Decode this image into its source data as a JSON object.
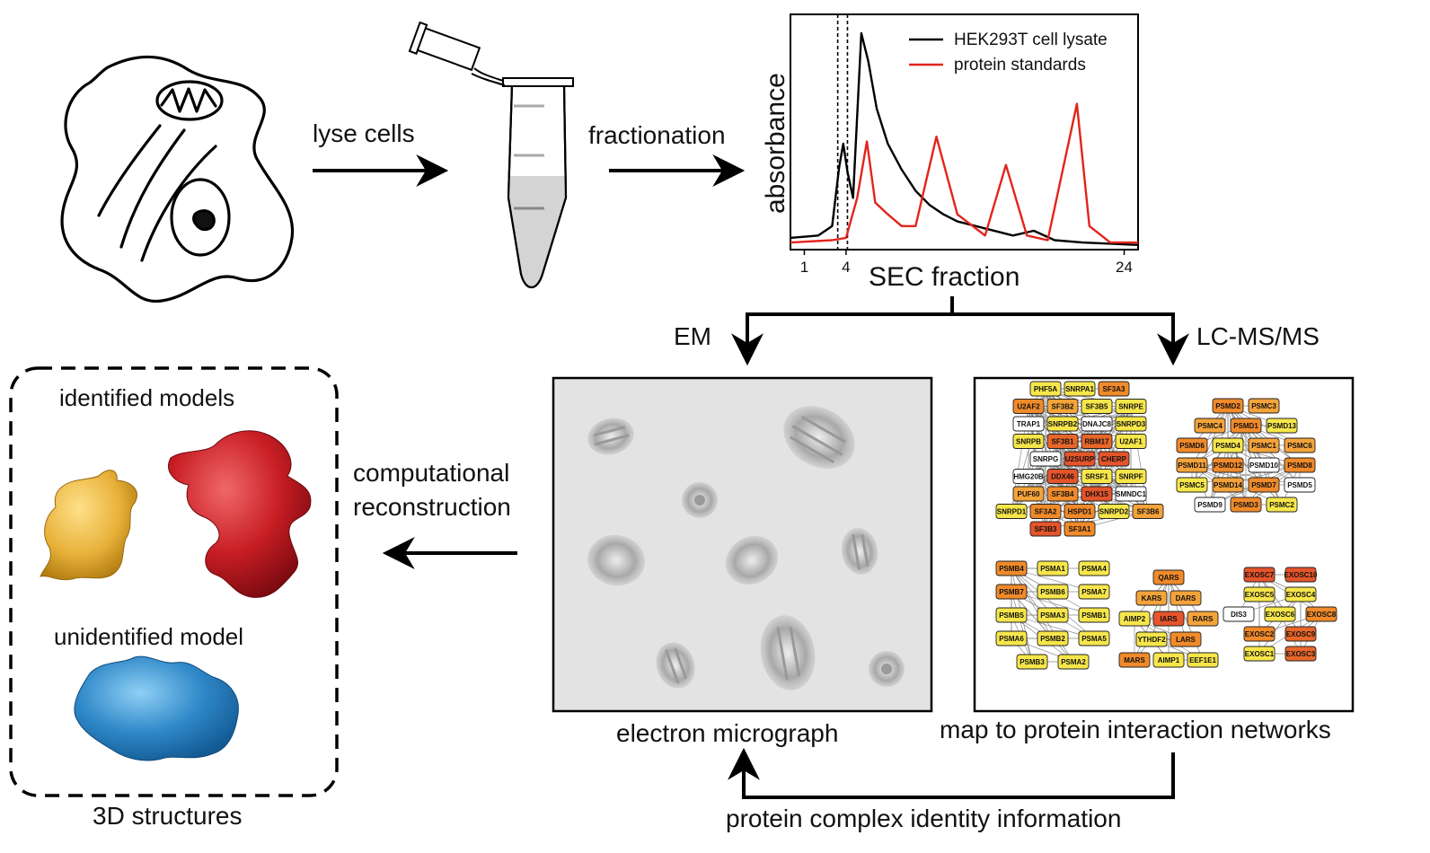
{
  "steps": {
    "lyse": "lyse cells",
    "fractionation": "fractionation",
    "em": "EM",
    "lcms": "LC-MS/MS",
    "reconstruction_line1": "computational",
    "reconstruction_line2": "reconstruction",
    "micrograph": "electron micrograph",
    "networks": "map to protein interaction networks",
    "identity": "protein complex identity information"
  },
  "structures": {
    "identified": "identified models",
    "unidentified": "unidentified model",
    "title": "3D structures"
  },
  "chart_data": {
    "type": "line",
    "ylabel": "absorbance",
    "xlabel": "SEC fraction",
    "x_ticks": [
      "1",
      "4",
      "24"
    ],
    "xlim": [
      0,
      25
    ],
    "ylim": [
      0,
      1
    ],
    "markers": [
      3.4,
      4.1
    ],
    "series": [
      {
        "name": "HEK293T cell lysate",
        "color": "#000000",
        "points": [
          [
            0,
            0.05
          ],
          [
            2,
            0.06
          ],
          [
            3,
            0.1
          ],
          [
            3.5,
            0.35
          ],
          [
            3.8,
            0.45
          ],
          [
            4.1,
            0.33
          ],
          [
            4.5,
            0.22
          ],
          [
            5.1,
            0.92
          ],
          [
            5.6,
            0.8
          ],
          [
            6.2,
            0.6
          ],
          [
            7,
            0.45
          ],
          [
            8,
            0.34
          ],
          [
            9,
            0.25
          ],
          [
            10,
            0.19
          ],
          [
            11,
            0.15
          ],
          [
            12,
            0.12
          ],
          [
            14,
            0.09
          ],
          [
            16,
            0.06
          ],
          [
            17.5,
            0.08
          ],
          [
            19,
            0.04
          ],
          [
            21,
            0.03
          ],
          [
            25,
            0.02
          ]
        ]
      },
      {
        "name": "protein standards",
        "color": "#e3241b",
        "points": [
          [
            0,
            0.03
          ],
          [
            3,
            0.04
          ],
          [
            4,
            0.05
          ],
          [
            4.8,
            0.22
          ],
          [
            5.5,
            0.46
          ],
          [
            6.1,
            0.2
          ],
          [
            7,
            0.15
          ],
          [
            8,
            0.1
          ],
          [
            9,
            0.1
          ],
          [
            10.5,
            0.48
          ],
          [
            12,
            0.15
          ],
          [
            14,
            0.06
          ],
          [
            15.5,
            0.36
          ],
          [
            17,
            0.06
          ],
          [
            18.5,
            0.04
          ],
          [
            20.6,
            0.62
          ],
          [
            21.5,
            0.1
          ],
          [
            23,
            0.03
          ],
          [
            25,
            0.03
          ]
        ]
      }
    ]
  },
  "networks": [
    {
      "id": "spliceosome",
      "nodes": [
        {
          "label": "PHF5A",
          "color": "#f6e64a"
        },
        {
          "label": "SNRPA1",
          "color": "#f6e64a"
        },
        {
          "label": "SF3A3",
          "color": "#f08a2a"
        },
        {
          "label": "U2AF2",
          "color": "#f08a2a"
        },
        {
          "label": "SF3B2",
          "color": "#f4a33a"
        },
        {
          "label": "SF3B5",
          "color": "#f6e64a"
        },
        {
          "label": "SNRPE",
          "color": "#f6e64a"
        },
        {
          "label": "TRAP1",
          "color": "#ffffff"
        },
        {
          "label": "SNRPB2",
          "color": "#f6e64a"
        },
        {
          "label": "DNAJC8",
          "color": "#ffffff"
        },
        {
          "label": "SNRPD3",
          "color": "#f6e64a"
        },
        {
          "label": "SNRPB",
          "color": "#f6e64a"
        },
        {
          "label": "SF3B1",
          "color": "#e8662a"
        },
        {
          "label": "RBM17",
          "color": "#e8662a"
        },
        {
          "label": "U2AF1",
          "color": "#f6e64a"
        },
        {
          "label": "SNRPG",
          "color": "#ffffff"
        },
        {
          "label": "U2SURP",
          "color": "#e5542a"
        },
        {
          "label": "CHERP",
          "color": "#e5542a"
        },
        {
          "label": "HMG20B",
          "color": "#ffffff"
        },
        {
          "label": "DDX46",
          "color": "#e5542a"
        },
        {
          "label": "SRSF1",
          "color": "#f6e64a"
        },
        {
          "label": "SNRPF",
          "color": "#f6e64a"
        },
        {
          "label": "PUF60",
          "color": "#f4a33a"
        },
        {
          "label": "SF3B4",
          "color": "#f08a2a"
        },
        {
          "label": "DHX15",
          "color": "#e5542a"
        },
        {
          "label": "SMNDC1",
          "color": "#ffffff"
        },
        {
          "label": "SNRPD1",
          "color": "#f6e64a"
        },
        {
          "label": "SF3A2",
          "color": "#f08a2a"
        },
        {
          "label": "HSPD1",
          "color": "#f08a2a"
        },
        {
          "label": "SNRPD2",
          "color": "#f6e64a"
        },
        {
          "label": "SF3B6",
          "color": "#f4a33a"
        },
        {
          "label": "SF3B3",
          "color": "#e5542a"
        },
        {
          "label": "SF3A1",
          "color": "#f08a2a"
        }
      ]
    },
    {
      "id": "proteasome-regulatory",
      "nodes": [
        {
          "label": "PSMD2",
          "color": "#f08a2a"
        },
        {
          "label": "PSMC3",
          "color": "#f4a33a"
        },
        {
          "label": "PSMC4",
          "color": "#f4a33a"
        },
        {
          "label": "PSMD1",
          "color": "#f08a2a"
        },
        {
          "label": "PSMD13",
          "color": "#f6e64a"
        },
        {
          "label": "PSMD6",
          "color": "#f08a2a"
        },
        {
          "label": "PSMD4",
          "color": "#f6e64a"
        },
        {
          "label": "PSMC1",
          "color": "#f4a33a"
        },
        {
          "label": "PSMC6",
          "color": "#f4a33a"
        },
        {
          "label": "PSMD11",
          "color": "#f4a33a"
        },
        {
          "label": "PSMD12",
          "color": "#f08a2a"
        },
        {
          "label": "PSMD10",
          "color": "#ffffff"
        },
        {
          "label": "PSMD8",
          "color": "#f08a2a"
        },
        {
          "label": "PSMC5",
          "color": "#f6e64a"
        },
        {
          "label": "PSMD14",
          "color": "#f4a33a"
        },
        {
          "label": "PSMD7",
          "color": "#f08a2a"
        },
        {
          "label": "PSMD5",
          "color": "#ffffff"
        },
        {
          "label": "PSMD9",
          "color": "#ffffff"
        },
        {
          "label": "PSMD3",
          "color": "#f08a2a"
        },
        {
          "label": "PSMC2",
          "color": "#f6e64a"
        }
      ]
    },
    {
      "id": "proteasome-core",
      "nodes": [
        {
          "label": "PSMB4",
          "color": "#f08a2a"
        },
        {
          "label": "PSMA1",
          "color": "#f6e64a"
        },
        {
          "label": "PSMA4",
          "color": "#f6e64a"
        },
        {
          "label": "PSMB7",
          "color": "#f08a2a"
        },
        {
          "label": "PSMB6",
          "color": "#f6e64a"
        },
        {
          "label": "PSMA7",
          "color": "#f6e64a"
        },
        {
          "label": "PSMB5",
          "color": "#f6e64a"
        },
        {
          "label": "PSMA3",
          "color": "#f6e64a"
        },
        {
          "label": "PSMB1",
          "color": "#f6e64a"
        },
        {
          "label": "PSMA6",
          "color": "#f6e64a"
        },
        {
          "label": "PSMB2",
          "color": "#f6e64a"
        },
        {
          "label": "PSMA5",
          "color": "#f6e64a"
        },
        {
          "label": "PSMB3",
          "color": "#f6e64a"
        },
        {
          "label": "PSMA2",
          "color": "#f6e64a"
        }
      ]
    },
    {
      "id": "tRNA-synthetase",
      "nodes": [
        {
          "label": "QARS",
          "color": "#f08a2a"
        },
        {
          "label": "KARS",
          "color": "#f4a33a"
        },
        {
          "label": "DARS",
          "color": "#f4a33a"
        },
        {
          "label": "AIMP2",
          "color": "#f6e64a"
        },
        {
          "label": "IARS",
          "color": "#e5542a"
        },
        {
          "label": "RARS",
          "color": "#f4a33a"
        },
        {
          "label": "YTHDF2",
          "color": "#f6e64a"
        },
        {
          "label": "LARS",
          "color": "#f08a2a"
        },
        {
          "label": "MARS",
          "color": "#f08a2a"
        },
        {
          "label": "AIMP1",
          "color": "#f6e64a"
        },
        {
          "label": "EEF1E1",
          "color": "#f6e64a"
        }
      ]
    },
    {
      "id": "exosome",
      "nodes": [
        {
          "label": "EXOSC7",
          "color": "#e5542a"
        },
        {
          "label": "EXOSC10",
          "color": "#e5542a"
        },
        {
          "label": "EXOSC5",
          "color": "#f6e64a"
        },
        {
          "label": "EXOSC4",
          "color": "#f6e64a"
        },
        {
          "label": "DIS3",
          "color": "#ffffff"
        },
        {
          "label": "EXOSC6",
          "color": "#f6e64a"
        },
        {
          "label": "EXOSC8",
          "color": "#f08a2a"
        },
        {
          "label": "EXOSC2",
          "color": "#f08a2a"
        },
        {
          "label": "EXOSC9",
          "color": "#e8662a"
        },
        {
          "label": "EXOSC1",
          "color": "#f6e64a"
        },
        {
          "label": "EXOSC3",
          "color": "#e8662a"
        }
      ]
    }
  ],
  "colors": {
    "lysate": "#000000",
    "standards": "#e3241b",
    "micrograph_bg": "#e3e3e3",
    "model_yellow": "#e8b23a",
    "model_red": "#c81e24",
    "model_blue": "#2f88c8"
  }
}
